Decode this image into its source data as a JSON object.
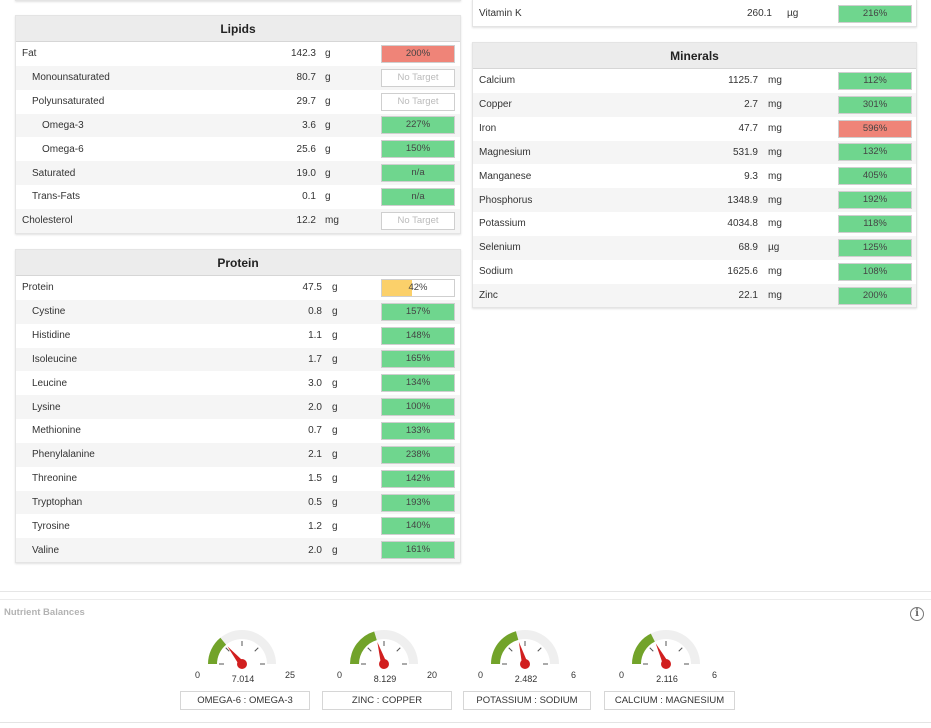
{
  "colors": {
    "green": "#6fd68e",
    "red": "#ef8478",
    "yellow": "#fbd06a",
    "gauge_green": "#6a9e1f",
    "needle": "#d11f1f"
  },
  "lipids": {
    "title": "Lipids",
    "rows": [
      {
        "name": "Fat",
        "value": "142.3",
        "unit": "g",
        "pct": "200%",
        "status": "red",
        "level": 1,
        "indent": 0
      },
      {
        "name": "Monounsaturated",
        "value": "80.7",
        "unit": "g",
        "pct": "No Target",
        "status": "none",
        "level": 0,
        "indent": 1
      },
      {
        "name": "Polyunsaturated",
        "value": "29.7",
        "unit": "g",
        "pct": "No Target",
        "status": "none",
        "level": 0,
        "indent": 1
      },
      {
        "name": "Omega-3",
        "value": "3.6",
        "unit": "g",
        "pct": "227%",
        "status": "green",
        "level": 1,
        "indent": 2
      },
      {
        "name": "Omega-6",
        "value": "25.6",
        "unit": "g",
        "pct": "150%",
        "status": "green",
        "level": 1,
        "indent": 2
      },
      {
        "name": "Saturated",
        "value": "19.0",
        "unit": "g",
        "pct": "n/a",
        "status": "green",
        "level": 1,
        "indent": 1
      },
      {
        "name": "Trans-Fats",
        "value": "0.1",
        "unit": "g",
        "pct": "n/a",
        "status": "green",
        "level": 1,
        "indent": 1
      },
      {
        "name": "Cholesterol",
        "value": "12.2",
        "unit": "mg",
        "pct": "No Target",
        "status": "none",
        "level": 0,
        "indent": 0
      }
    ]
  },
  "protein": {
    "title": "Protein",
    "rows": [
      {
        "name": "Protein",
        "value": "47.5",
        "unit": "g",
        "pct": "42%",
        "status": "yellow",
        "level": 0.42,
        "indent": 0
      },
      {
        "name": "Cystine",
        "value": "0.8",
        "unit": "g",
        "pct": "157%",
        "status": "green",
        "level": 1,
        "indent": 1
      },
      {
        "name": "Histidine",
        "value": "1.1",
        "unit": "g",
        "pct": "148%",
        "status": "green",
        "level": 1,
        "indent": 1
      },
      {
        "name": "Isoleucine",
        "value": "1.7",
        "unit": "g",
        "pct": "165%",
        "status": "green",
        "level": 1,
        "indent": 1
      },
      {
        "name": "Leucine",
        "value": "3.0",
        "unit": "g",
        "pct": "134%",
        "status": "green",
        "level": 1,
        "indent": 1
      },
      {
        "name": "Lysine",
        "value": "2.0",
        "unit": "g",
        "pct": "100%",
        "status": "green",
        "level": 1,
        "indent": 1
      },
      {
        "name": "Methionine",
        "value": "0.7",
        "unit": "g",
        "pct": "133%",
        "status": "green",
        "level": 1,
        "indent": 1
      },
      {
        "name": "Phenylalanine",
        "value": "2.1",
        "unit": "g",
        "pct": "238%",
        "status": "green",
        "level": 1,
        "indent": 1
      },
      {
        "name": "Threonine",
        "value": "1.5",
        "unit": "g",
        "pct": "142%",
        "status": "green",
        "level": 1,
        "indent": 1
      },
      {
        "name": "Tryptophan",
        "value": "0.5",
        "unit": "g",
        "pct": "193%",
        "status": "green",
        "level": 1,
        "indent": 1
      },
      {
        "name": "Tyrosine",
        "value": "1.2",
        "unit": "g",
        "pct": "140%",
        "status": "green",
        "level": 1,
        "indent": 1
      },
      {
        "name": "Valine",
        "value": "2.0",
        "unit": "g",
        "pct": "161%",
        "status": "green",
        "level": 1,
        "indent": 1
      }
    ]
  },
  "vitamin_k": {
    "name": "Vitamin K",
    "value": "260.1",
    "unit": "µg",
    "pct": "216%",
    "status": "green",
    "level": 1,
    "indent": 0
  },
  "minerals": {
    "title": "Minerals",
    "rows": [
      {
        "name": "Calcium",
        "value": "1125.7",
        "unit": "mg",
        "pct": "112%",
        "status": "green",
        "level": 1,
        "indent": 0
      },
      {
        "name": "Copper",
        "value": "2.7",
        "unit": "mg",
        "pct": "301%",
        "status": "green",
        "level": 1,
        "indent": 0
      },
      {
        "name": "Iron",
        "value": "47.7",
        "unit": "mg",
        "pct": "596%",
        "status": "red",
        "level": 1,
        "indent": 0
      },
      {
        "name": "Magnesium",
        "value": "531.9",
        "unit": "mg",
        "pct": "132%",
        "status": "green",
        "level": 1,
        "indent": 0
      },
      {
        "name": "Manganese",
        "value": "9.3",
        "unit": "mg",
        "pct": "405%",
        "status": "green",
        "level": 1,
        "indent": 0
      },
      {
        "name": "Phosphorus",
        "value": "1348.9",
        "unit": "mg",
        "pct": "192%",
        "status": "green",
        "level": 1,
        "indent": 0
      },
      {
        "name": "Potassium",
        "value": "4034.8",
        "unit": "mg",
        "pct": "118%",
        "status": "green",
        "level": 1,
        "indent": 0
      },
      {
        "name": "Selenium",
        "value": "68.9",
        "unit": "µg",
        "pct": "125%",
        "status": "green",
        "level": 1,
        "indent": 0
      },
      {
        "name": "Sodium",
        "value": "1625.6",
        "unit": "mg",
        "pct": "108%",
        "status": "green",
        "level": 1,
        "indent": 0
      },
      {
        "name": "Zinc",
        "value": "22.1",
        "unit": "mg",
        "pct": "200%",
        "status": "green",
        "level": 1,
        "indent": 0
      }
    ]
  },
  "balances": {
    "title": "Nutrient Balances",
    "gauges": [
      {
        "label": "OMEGA-6 : OMEGA-3",
        "min": "0",
        "max": "25",
        "value": "7.014",
        "num": 7.014,
        "lo": 0,
        "hi": 25
      },
      {
        "label": "ZINC : COPPER",
        "min": "0",
        "max": "20",
        "value": "8.129",
        "num": 8.129,
        "lo": 0,
        "hi": 20
      },
      {
        "label": "POTASSIUM : SODIUM",
        "min": "0",
        "max": "6",
        "value": "2.482",
        "num": 2.482,
        "lo": 0,
        "hi": 6
      },
      {
        "label": "CALCIUM : MAGNESIUM",
        "min": "0",
        "max": "6",
        "value": "2.116",
        "num": 2.116,
        "lo": 0,
        "hi": 6
      }
    ]
  }
}
